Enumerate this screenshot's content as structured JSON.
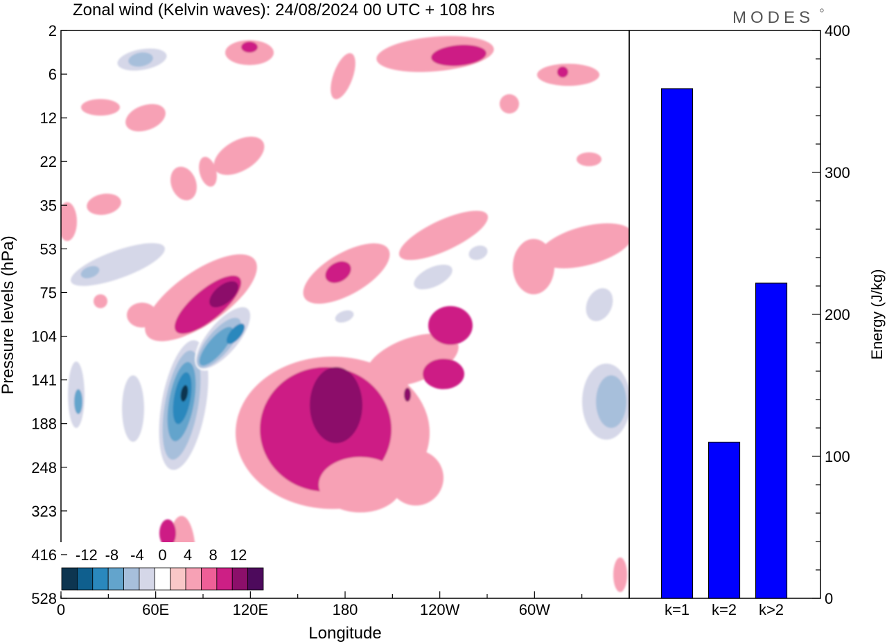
{
  "title": "Zonal wind (Kelvin waves):  24/08/2024  00 UTC  + 108 hrs",
  "logo": "MODES",
  "colors": {
    "bar_fill": "#0000ff",
    "bar_stroke": "#000000",
    "neg_light": "#d5d7e8",
    "pos_light": "#f9c7c7"
  },
  "chart_data": [
    {
      "type": "heatmap",
      "xlabel": "Longitude",
      "ylabel": "Pressure levels (hPa)",
      "x_ticks": [
        "0",
        "60E",
        "120E",
        "180",
        "120W",
        "60W"
      ],
      "y_ticks": [
        "2",
        "6",
        "12",
        "22",
        "35",
        "53",
        "75",
        "104",
        "141",
        "188",
        "248",
        "323",
        "416",
        "528"
      ],
      "colorbar": {
        "labels": [
          "-12",
          "-8",
          "-4",
          "0",
          "4",
          "8",
          "12"
        ],
        "levels": [
          -14,
          -12,
          -10,
          -8,
          -6,
          -4,
          -2,
          2,
          4,
          6,
          8,
          10,
          12,
          14
        ],
        "colors": [
          "#0d3550",
          "#0f5f8e",
          "#2a88bd",
          "#63a4cc",
          "#a7bfdb",
          "#d5d7e8",
          "#ffffff",
          "#f9c7c7",
          "#f7a1b5",
          "#ef5f97",
          "#cd1f85",
          "#8c0f6a",
          "#4d0a5c"
        ]
      }
    },
    {
      "type": "bar",
      "categories": [
        "k=1",
        "k=2",
        "k>2"
      ],
      "values": [
        359,
        110,
        222
      ],
      "ylabel": "Energy (J/kg)",
      "ylim": [
        0,
        400
      ],
      "y_ticks": [
        "0",
        "100",
        "200",
        "300",
        "400"
      ]
    }
  ]
}
